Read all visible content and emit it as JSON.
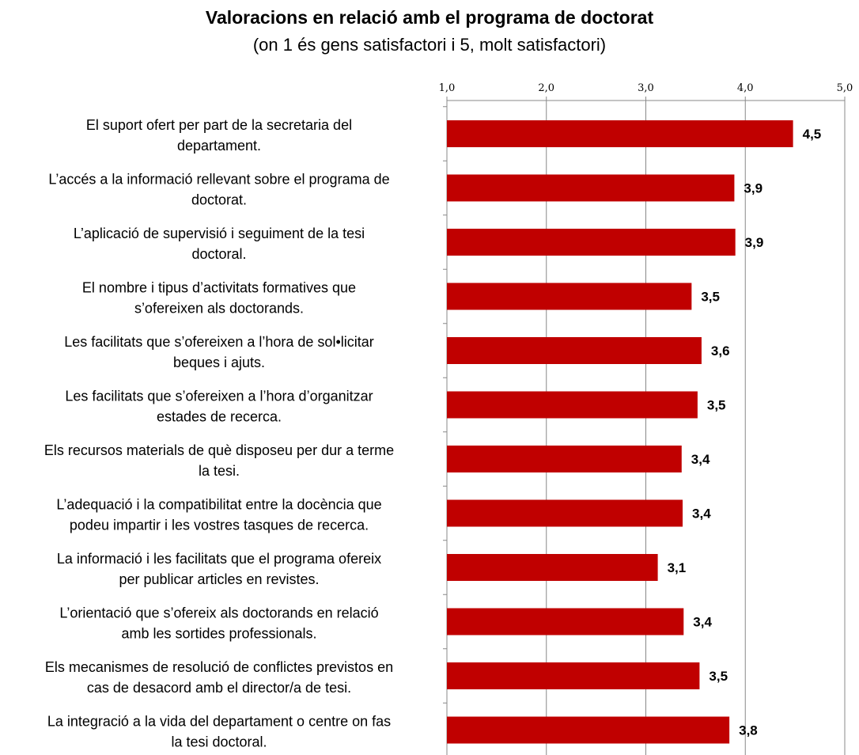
{
  "chart_data": {
    "type": "bar",
    "orientation": "horizontal",
    "title": "Valoracions en relació amb el programa de doctorat",
    "subtitle": "(on 1 és gens satisfactori i 5, molt satisfactori)",
    "xlim": [
      1.0,
      5.0
    ],
    "x_ticks": [
      "1,0",
      "2,0",
      "3,0",
      "4,0",
      "5,0"
    ],
    "x_axis_position": "top",
    "grid": true,
    "bar_color": "#c00000",
    "categories": [
      [
        "El suport ofert per part de la secretaria del",
        "departament."
      ],
      [
        "L’accés a la informació rellevant sobre el programa de",
        "doctorat."
      ],
      [
        "L’aplicació de supervisió i seguiment de la tesi",
        "doctoral."
      ],
      [
        "El nombre i tipus d’activitats formatives que",
        "s’ofereixen als doctorands."
      ],
      [
        "Les facilitats que s’ofereixen  a l’hora de sol•licitar",
        "beques i ajuts."
      ],
      [
        "Les facilitats que s’ofereixen  a l’hora d’organitzar",
        "estades de recerca."
      ],
      [
        "Els recursos materials de què disposeu per dur a terme",
        "la tesi."
      ],
      [
        "L’adequació i la compatibilitat entre la docència que",
        "podeu impartir i les vostres tasques de recerca."
      ],
      [
        "La informació i les facilitats que el programa ofereix",
        "per publicar articles en revistes."
      ],
      [
        "L’orientació que s’ofereix als doctorands en relació",
        "amb les sortides professionals."
      ],
      [
        "Els mecanismes de resolució de conflictes previstos en",
        "cas de desacord amb el director/a de tesi."
      ],
      [
        "La integració a la vida del departament o centre on fas",
        "la tesi doctoral."
      ]
    ],
    "values": [
      4.48,
      3.89,
      3.9,
      3.46,
      3.56,
      3.52,
      3.36,
      3.37,
      3.12,
      3.38,
      3.54,
      3.84
    ],
    "value_labels": [
      "4,5",
      "3,9",
      "3,9",
      "3,5",
      "3,6",
      "3,5",
      "3,4",
      "3,4",
      "3,1",
      "3,4",
      "3,5",
      "3,8"
    ]
  }
}
